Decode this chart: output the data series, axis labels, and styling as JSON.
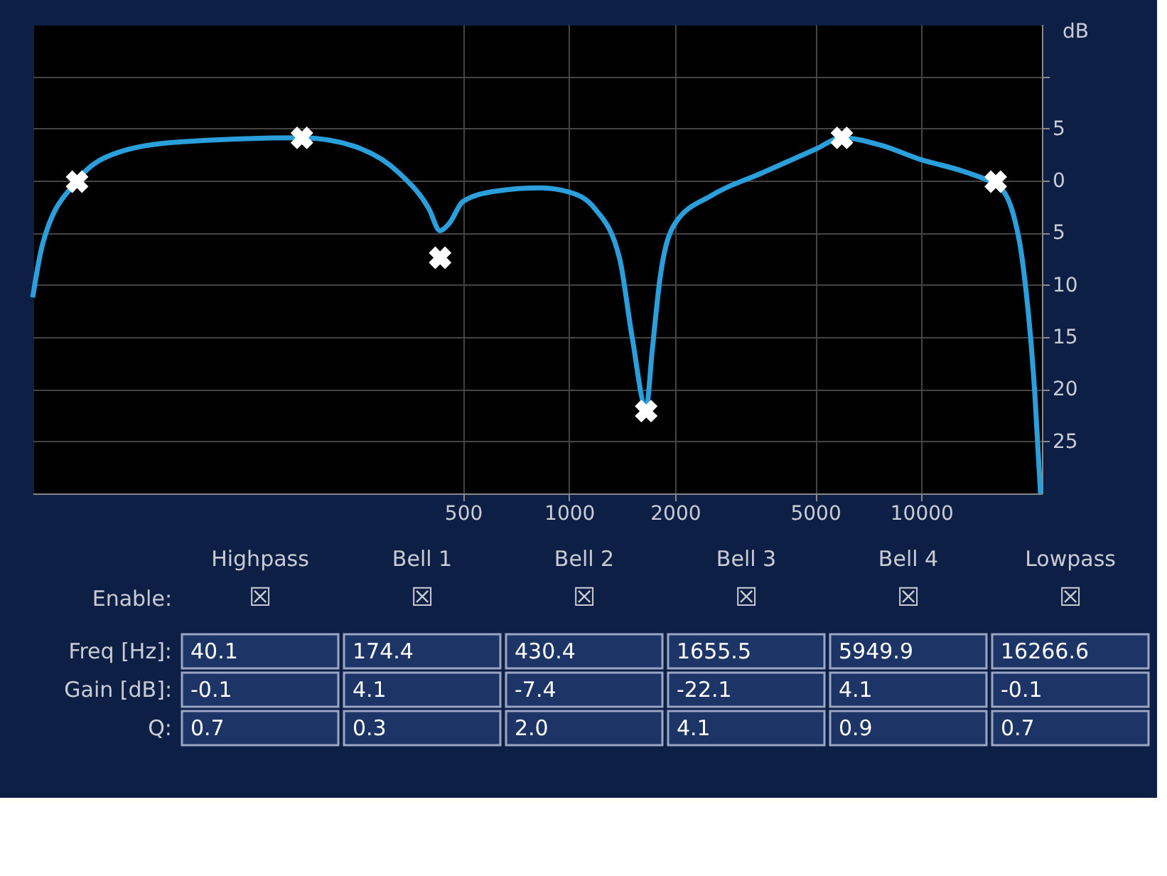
{
  "chart_data": {
    "type": "line",
    "ylabel": "dB",
    "xlim": [
      30,
      22000
    ],
    "xticks": [
      500,
      1000,
      2000,
      5000,
      10000
    ],
    "log": "x",
    "ylim": [
      -30,
      15
    ],
    "yticks": [
      {
        "value": 10,
        "label": null
      },
      5,
      0,
      {
        "value": -5,
        "label": "5"
      },
      {
        "value": -10,
        "label": "10"
      },
      {
        "value": -15,
        "label": "15"
      },
      {
        "value": -20,
        "label": "20"
      },
      {
        "value": -25,
        "label": "25"
      }
    ],
    "grid": true,
    "tick_labels": "xy",
    "series": [
      {
        "color": "#2a9fdc",
        "line_style": "solid",
        "marker": "none",
        "x": [
          30,
          32,
          40.1,
          52.4,
          77.6,
          174.4,
          245,
          330,
          400,
          430,
          457,
          500,
          622,
          824,
          1000,
          1184,
          1392,
          1510,
          1655,
          1722,
          1810,
          2000,
          2546,
          3512,
          5000,
          5950,
          7666,
          10000,
          12866,
          15550,
          16266,
          18050,
          19460,
          21000,
          21800
        ],
        "values": [
          -11.2,
          -6.1,
          0,
          2.7,
          3.7,
          4.1,
          3.3,
          0.7,
          -2.7,
          -4.8,
          -4.1,
          -2.0,
          -1.0,
          -0.7,
          -1.1,
          -2.7,
          -7.5,
          -15,
          -21.8,
          -16.3,
          -9.5,
          -4.1,
          -1.4,
          0.7,
          3.0,
          4.1,
          3.4,
          2.0,
          1.0,
          0,
          -0.3,
          -2.7,
          -8.2,
          -20.4,
          -30
        ]
      },
      {
        "type": "scatter",
        "color": "#ffffff",
        "marker": "cross",
        "x": [
          40.1,
          174.4,
          430.4,
          1655.5,
          5949.9,
          16266.6
        ],
        "values": [
          -0.1,
          4.1,
          -7.4,
          -22.1,
          4.1,
          -0.1
        ]
      }
    ],
    "annotations": [
      "Highpass",
      "Bell 1",
      "Bell 2",
      "Bell 3",
      "Bell 4",
      "Lowpass",
      "Enable:",
      "☒",
      "☒",
      "☒",
      "☒",
      "☒",
      "☒",
      "Freq [Hz]:",
      "40.1",
      "174.4",
      "430.4",
      "1655.5",
      "5949.9",
      "16266.6",
      "Gain [dB]:",
      "-0.1",
      "4.1",
      "-7.4",
      "-22.1",
      "4.1",
      "-0.1",
      "Q:",
      "0.7",
      "0.3",
      "2.0",
      "4.1",
      "0.9",
      "0.7"
    ]
  }
}
